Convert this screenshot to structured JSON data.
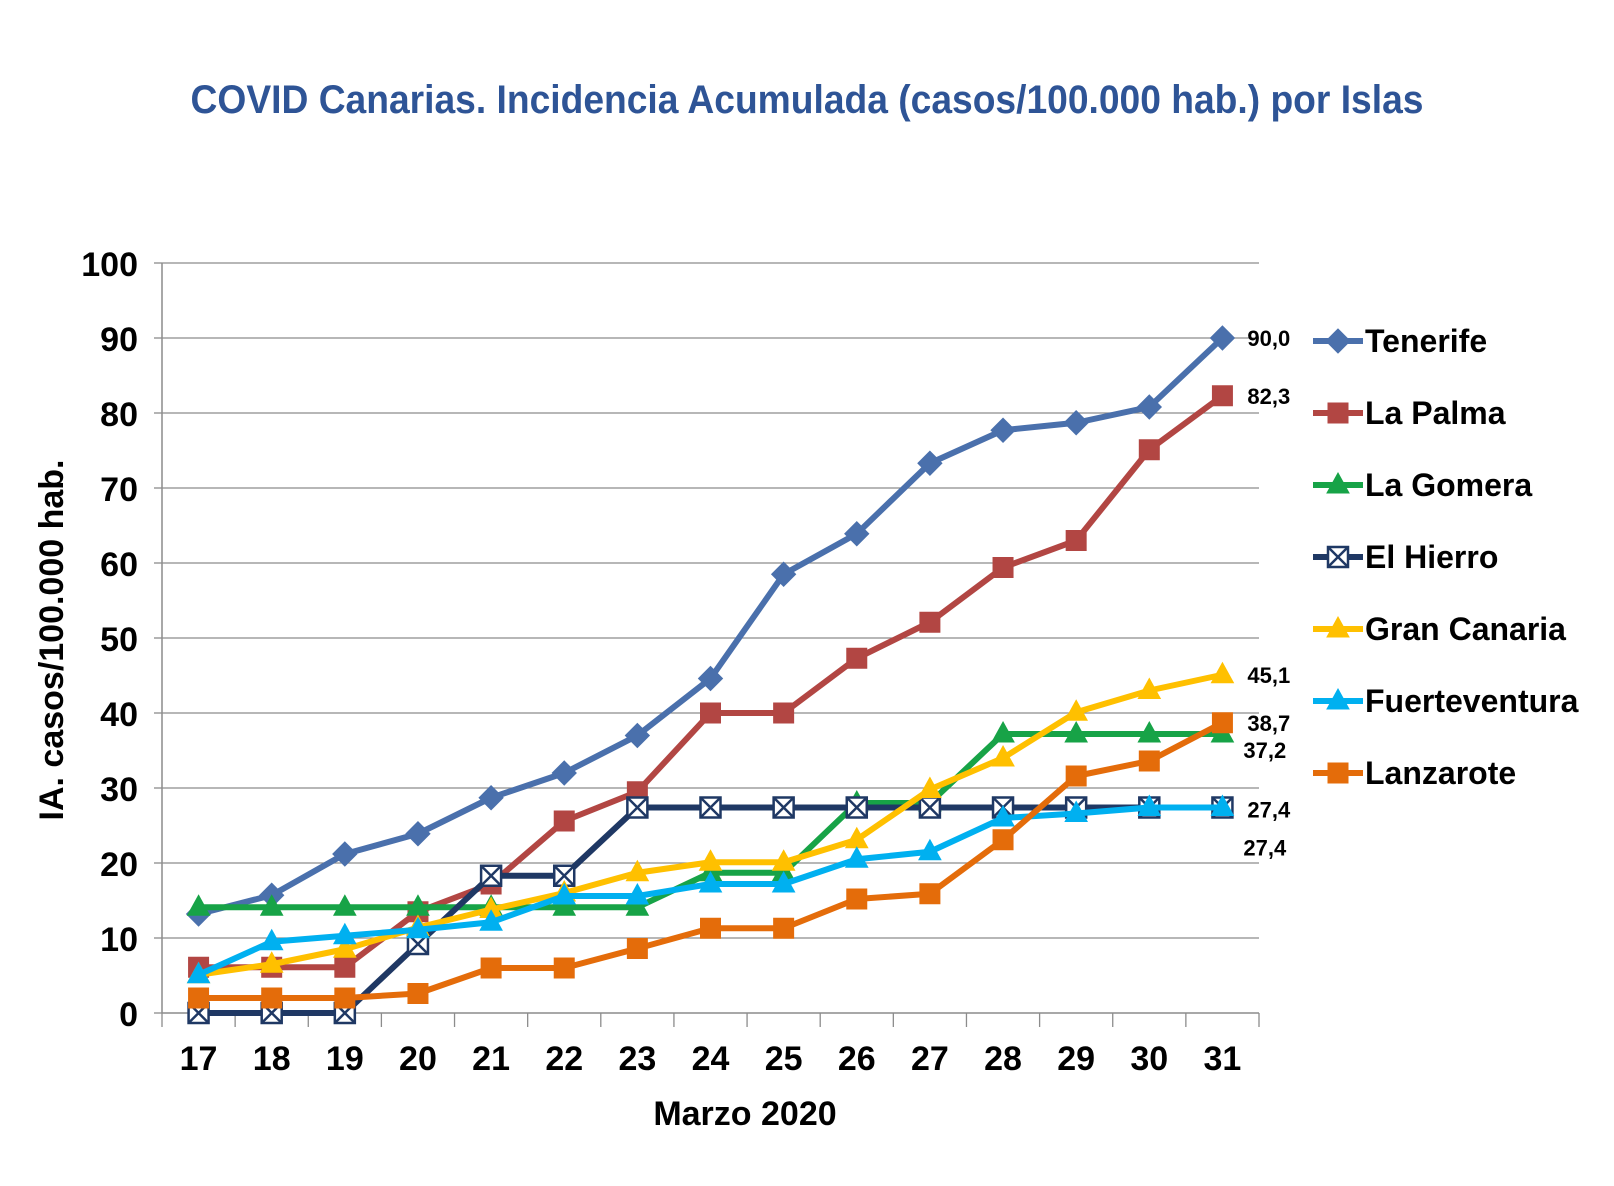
{
  "chart_data": {
    "type": "line",
    "title": "COVID Canarias. Incidencia Acumulada (casos/100.000 hab.) por Islas",
    "xlabel": "Marzo 2020",
    "ylabel": "IA. casos/100.000 hab.",
    "ylim": [
      0,
      100
    ],
    "yticks": [
      0,
      10,
      20,
      30,
      40,
      50,
      60,
      70,
      80,
      90,
      100
    ],
    "categories": [
      "17",
      "18",
      "19",
      "20",
      "21",
      "22",
      "23",
      "24",
      "25",
      "26",
      "27",
      "28",
      "29",
      "30",
      "31"
    ],
    "grid": true,
    "legend_position": "right",
    "series": [
      {
        "name": "Tenerife",
        "color": "#4A70AC",
        "marker": "diamond",
        "values": [
          13.2,
          15.7,
          21.2,
          23.9,
          28.7,
          32.0,
          37.0,
          44.6,
          58.5,
          63.9,
          73.3,
          77.7,
          78.7,
          80.8,
          90.0
        ],
        "end_label": "90,0"
      },
      {
        "name": "La Palma",
        "color": "#B24643",
        "marker": "square",
        "values": [
          6.1,
          6.1,
          6.1,
          13.5,
          17.2,
          25.6,
          29.5,
          40.0,
          40.0,
          47.3,
          52.1,
          59.4,
          63.0,
          75.1,
          82.3
        ],
        "end_label": "82,3"
      },
      {
        "name": "La Gomera",
        "color": "#17A347",
        "marker": "triangle",
        "values": [
          14.1,
          14.1,
          14.1,
          14.1,
          14.1,
          14.1,
          14.1,
          18.7,
          18.7,
          28.0,
          28.0,
          37.2,
          37.2,
          37.2,
          37.2
        ],
        "end_label": "37,2"
      },
      {
        "name": "El Hierro",
        "color": "#1F3864",
        "marker": "boxx",
        "values": [
          0,
          0,
          0,
          9.2,
          18.3,
          18.3,
          27.4,
          27.4,
          27.4,
          27.4,
          27.4,
          27.4,
          27.4,
          27.4,
          27.4
        ],
        "end_label": "27,4"
      },
      {
        "name": "Gran Canaria",
        "color": "#FFC000",
        "marker": "triangle",
        "values": [
          5.1,
          6.5,
          8.5,
          11.4,
          13.8,
          16.0,
          18.7,
          20.1,
          20.1,
          23.1,
          29.8,
          34.0,
          40.1,
          43.0,
          45.1
        ],
        "end_label": "45,1"
      },
      {
        "name": "Fuerteventura",
        "color": "#00B0F0",
        "marker": "triangle",
        "values": [
          5.1,
          9.5,
          10.3,
          11.1,
          12.1,
          15.6,
          15.6,
          17.2,
          17.2,
          20.5,
          21.5,
          26.0,
          26.6,
          27.4,
          27.4
        ],
        "end_label": "27,4"
      },
      {
        "name": "Lanzarote",
        "color": "#E46C0A",
        "marker": "square",
        "values": [
          2.0,
          2.0,
          2.0,
          2.6,
          6.0,
          6.0,
          8.6,
          11.3,
          11.3,
          15.2,
          15.9,
          23.1,
          31.6,
          33.6,
          38.7
        ],
        "end_label": "38,7"
      }
    ]
  }
}
